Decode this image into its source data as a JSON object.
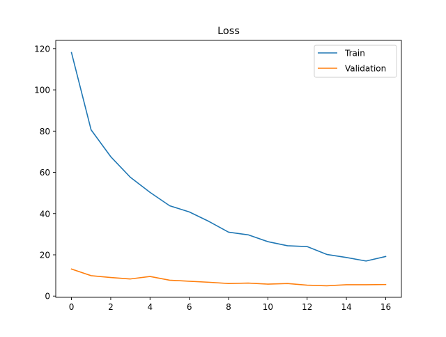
{
  "chart_data": {
    "type": "line",
    "title": "Loss",
    "xlabel": "",
    "ylabel": "",
    "x": [
      0,
      1,
      2,
      3,
      4,
      5,
      6,
      7,
      8,
      9,
      10,
      11,
      12,
      13,
      14,
      15,
      16
    ],
    "series": [
      {
        "name": "Train",
        "color": "#1f77b4",
        "values": [
          118.1,
          80.6,
          67.6,
          57.6,
          50.3,
          43.8,
          40.8,
          36.2,
          31.0,
          29.7,
          26.4,
          24.4,
          24.0,
          20.2,
          18.7,
          17.0,
          19.2
        ]
      },
      {
        "name": "Validation",
        "color": "#ff7f0e",
        "values": [
          13.1,
          9.9,
          9.0,
          8.3,
          9.5,
          7.7,
          7.2,
          6.7,
          6.1,
          6.3,
          5.8,
          6.1,
          5.3,
          5.0,
          5.5,
          5.5,
          5.6
        ]
      }
    ],
    "xlim": [
      -0.8,
      16.8
    ],
    "ylim": [
      -0.6,
      124.0
    ],
    "xticks": [
      0,
      2,
      4,
      6,
      8,
      10,
      12,
      14,
      16
    ],
    "yticks": [
      0,
      20,
      40,
      60,
      80,
      100,
      120
    ],
    "grid": false,
    "legend_position": "top-right"
  }
}
